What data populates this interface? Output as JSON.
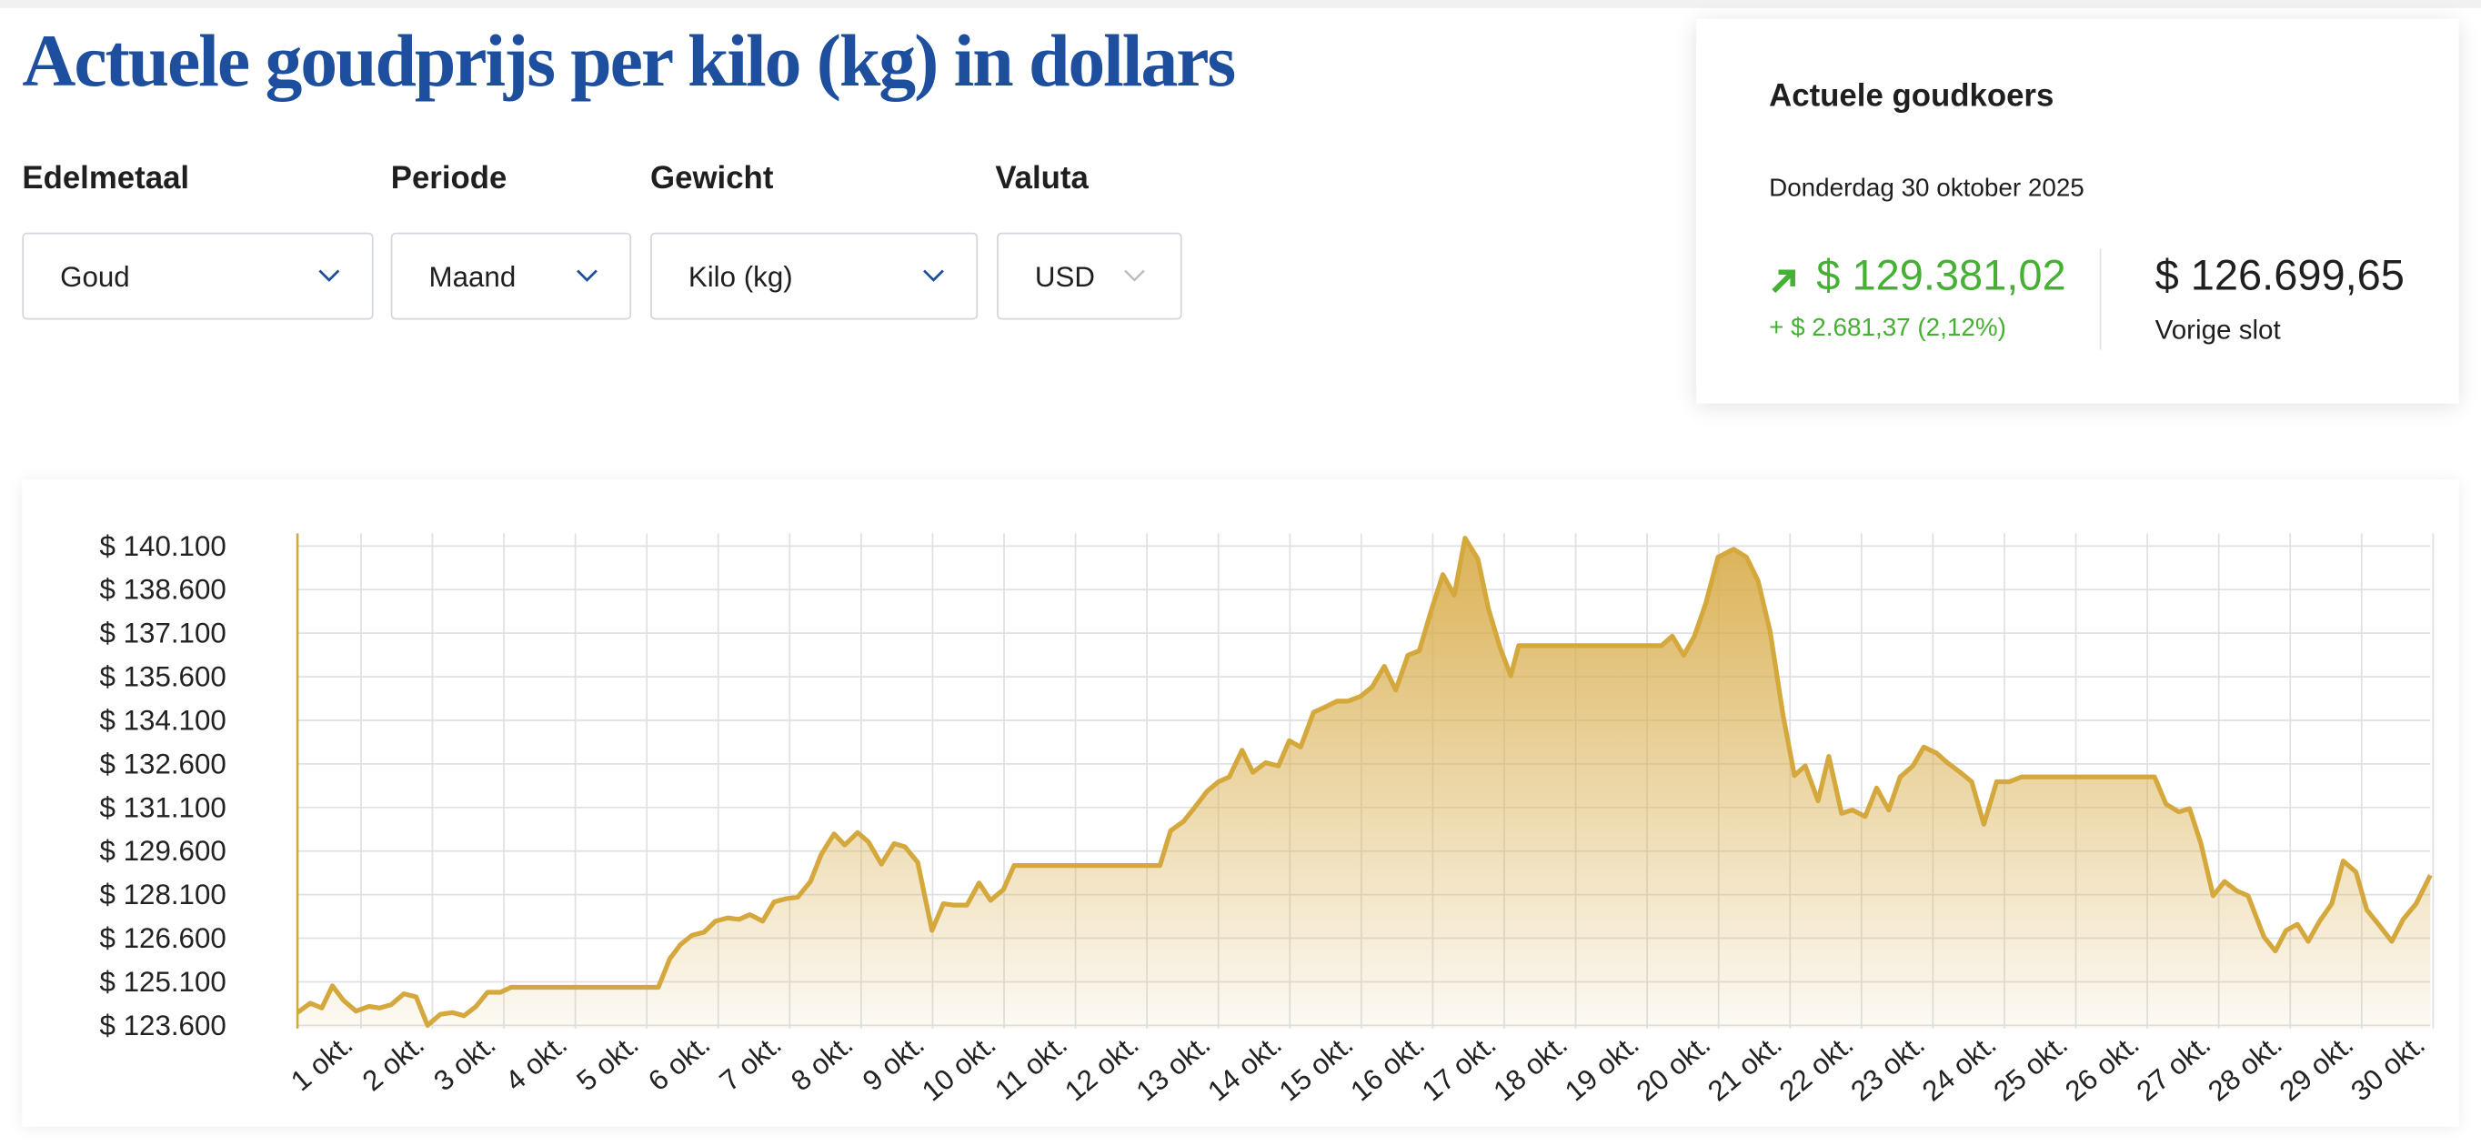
{
  "header": {
    "title": "Actuele goudprijs per kilo (kg) in dollars"
  },
  "filters": [
    {
      "label": "Edelmetaal",
      "value": "Goud"
    },
    {
      "label": "Periode",
      "value": "Maand"
    },
    {
      "label": "Gewicht",
      "value": "Kilo (kg)"
    },
    {
      "label": "Valuta",
      "value": "USD"
    }
  ],
  "rate_card": {
    "title": "Actuele goudkoers",
    "date": "Donderdag 30 oktober 2025",
    "price": "$ 129.381,02",
    "change": "+ $ 2.681,37 (2,12%)",
    "previous": "$ 126.699,65",
    "previous_label": "Vorige slot"
  },
  "chart_data": {
    "type": "area",
    "color": "#d4a83c",
    "grid": true,
    "xlim": [
      0.51,
      30.36
    ],
    "ylim": [
      123490,
      140540
    ],
    "xticks": [
      {
        "value": 1,
        "label": "1 okt."
      },
      {
        "value": 2,
        "label": "2 okt."
      },
      {
        "value": 3,
        "label": "3 okt."
      },
      {
        "value": 4,
        "label": "4 okt."
      },
      {
        "value": 5,
        "label": "5 okt."
      },
      {
        "value": 6,
        "label": "6 okt."
      },
      {
        "value": 7,
        "label": "7 okt."
      },
      {
        "value": 8,
        "label": "8 okt."
      },
      {
        "value": 9,
        "label": "9 okt."
      },
      {
        "value": 10,
        "label": "10 okt."
      },
      {
        "value": 11,
        "label": "11 okt."
      },
      {
        "value": 12,
        "label": "12 okt."
      },
      {
        "value": 13,
        "label": "13 okt."
      },
      {
        "value": 14,
        "label": "14 okt."
      },
      {
        "value": 15,
        "label": "15 okt."
      },
      {
        "value": 16,
        "label": "16 okt."
      },
      {
        "value": 17,
        "label": "17 okt."
      },
      {
        "value": 18,
        "label": "18 okt."
      },
      {
        "value": 19,
        "label": "19 okt."
      },
      {
        "value": 20,
        "label": "20 okt."
      },
      {
        "value": 21,
        "label": "21 okt."
      },
      {
        "value": 22,
        "label": "22 okt."
      },
      {
        "value": 23,
        "label": "23 okt."
      },
      {
        "value": 24,
        "label": "24 okt."
      },
      {
        "value": 25,
        "label": "25 okt."
      },
      {
        "value": 26,
        "label": "26 okt."
      },
      {
        "value": 27,
        "label": "27 okt."
      },
      {
        "value": 28,
        "label": "28 okt."
      },
      {
        "value": 29,
        "label": "29 okt."
      },
      {
        "value": 30,
        "label": "30 okt."
      }
    ],
    "yticks": [
      {
        "value": 123600,
        "label": "$ 123.600"
      },
      {
        "value": 125100,
        "label": "$ 125.100"
      },
      {
        "value": 126600,
        "label": "$ 126.600"
      },
      {
        "value": 128100,
        "label": "$ 128.100"
      },
      {
        "value": 129600,
        "label": "$ 129.600"
      },
      {
        "value": 131100,
        "label": "$ 131.100"
      },
      {
        "value": 132600,
        "label": "$ 132.600"
      },
      {
        "value": 134100,
        "label": "$ 134.100"
      },
      {
        "value": 135600,
        "label": "$ 135.600"
      },
      {
        "value": 137100,
        "label": "$ 137.100"
      },
      {
        "value": 138600,
        "label": "$ 138.600"
      },
      {
        "value": 140100,
        "label": "$ 140.100"
      }
    ],
    "x": [
      0.51,
      0.69,
      0.85,
      1.0,
      1.15,
      1.33,
      1.51,
      1.66,
      1.82,
      2.0,
      2.17,
      2.33,
      2.51,
      2.68,
      2.84,
      3.01,
      3.17,
      3.35,
      3.5,
      5.56,
      5.72,
      5.87,
      6.03,
      6.2,
      6.36,
      6.53,
      6.69,
      6.84,
      7.02,
      7.18,
      7.35,
      7.51,
      7.69,
      7.84,
      8.02,
      8.17,
      8.35,
      8.5,
      8.68,
      8.86,
      9.01,
      9.19,
      9.39,
      9.55,
      9.7,
      9.88,
      10.05,
      10.21,
      10.39,
      10.54,
      12.58,
      12.73,
      12.91,
      13.07,
      13.24,
      13.4,
      13.55,
      13.73,
      13.88,
      14.06,
      14.24,
      14.39,
      14.55,
      14.73,
      14.88,
      15.06,
      15.21,
      15.39,
      15.55,
      15.72,
      15.88,
      16.05,
      16.21,
      16.39,
      16.54,
      16.7,
      16.85,
      17.03,
      17.18,
      17.34,
      17.49,
      17.6,
      19.6,
      19.75,
      19.91,
      20.06,
      20.22,
      20.39,
      20.61,
      20.79,
      20.95,
      21.12,
      21.3,
      21.46,
      21.61,
      21.79,
      21.94,
      22.12,
      22.27,
      22.45,
      22.61,
      22.78,
      22.94,
      23.12,
      23.27,
      23.45,
      23.6,
      23.78,
      23.94,
      24.11,
      24.29,
      24.47,
      24.64,
      26.5,
      26.66,
      26.84,
      26.99,
      27.15,
      27.32,
      27.48,
      27.65,
      27.81,
      28.03,
      28.19,
      28.34,
      28.5,
      28.65,
      28.81,
      28.98,
      29.14,
      29.32,
      29.47,
      29.65,
      29.82,
      29.98,
      30.16,
      30.36
    ],
    "values": [
      124040,
      124360,
      124200,
      124960,
      124470,
      124090,
      124250,
      124200,
      124310,
      124690,
      124580,
      123600,
      123980,
      124040,
      123930,
      124250,
      124740,
      124740,
      124910,
      124910,
      125890,
      126380,
      126700,
      126810,
      127190,
      127300,
      127250,
      127410,
      127190,
      127850,
      127960,
      128010,
      128550,
      129480,
      130190,
      129810,
      130240,
      129920,
      129150,
      129860,
      129750,
      129210,
      126870,
      127790,
      127740,
      127740,
      128500,
      127900,
      128280,
      129100,
      129100,
      130300,
      130620,
      131110,
      131660,
      131990,
      132150,
      133070,
      132310,
      132640,
      132530,
      133400,
      133180,
      134380,
      134540,
      134760,
      134760,
      134930,
      135250,
      135960,
      135140,
      136340,
      136500,
      137980,
      139120,
      138410,
      140370,
      139660,
      137920,
      136610,
      135630,
      136670,
      136670,
      137000,
      136340,
      137000,
      138140,
      139720,
      139990,
      139720,
      138900,
      137160,
      134270,
      132200,
      132530,
      131330,
      132860,
      130900,
      131010,
      130790,
      131770,
      131010,
      132150,
      132530,
      133180,
      132970,
      132640,
      132310,
      131990,
      130520,
      131990,
      131990,
      132150,
      132150,
      131220,
      130950,
      131060,
      129860,
      128060,
      128550,
      128230,
      128060,
      126650,
      126160,
      126870,
      127080,
      126490,
      127190,
      127790,
      129260,
      128880,
      127580,
      127030,
      126490,
      127250,
      127790,
      128770
    ]
  }
}
